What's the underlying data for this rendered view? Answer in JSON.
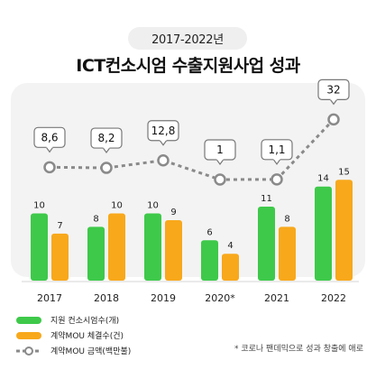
{
  "period": "2017-2022년",
  "title": "ICT컨소시엄 수출지원사업 성과",
  "note": "* 코로나 팬데믹으로 성과 창출에 애로",
  "colors": {
    "green": "#3ec94a",
    "orange": "#f8a81b",
    "line": "#8a8a8a",
    "panel": "#f3f3f3"
  },
  "chart_data": {
    "type": "bar",
    "categories": [
      "2017",
      "2018",
      "2019",
      "2020*",
      "2021",
      "2022"
    ],
    "series": [
      {
        "name": "지원 컨소시엄수(개)",
        "values": [
          10,
          8,
          10,
          6,
          11,
          14
        ],
        "color": "#3ec94a"
      },
      {
        "name": "계약MOU 체결수(건)",
        "values": [
          7,
          10,
          9,
          4,
          8,
          15
        ],
        "color": "#f8a81b"
      }
    ],
    "line_series": {
      "name": "계약MOU 금액(백만불)",
      "values": [
        8.6,
        8.2,
        12.8,
        1,
        1.1,
        32
      ],
      "labels": [
        "8,6",
        "8,2",
        "12,8",
        "1",
        "1,1",
        "32"
      ]
    },
    "legend": {
      "position": "bottom-left"
    }
  }
}
